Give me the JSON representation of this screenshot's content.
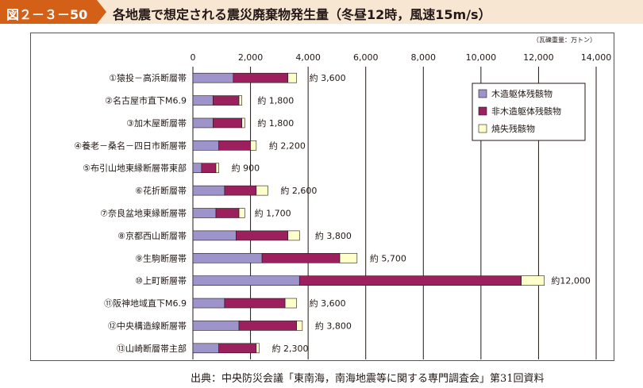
{
  "figure": {
    "label": "図２－３－50",
    "title": "各地震で想定される震災廃棄物発生量（冬昼12時，風速15m/s）",
    "source": "出典：中央防災会議「東南海，南海地震等に関する専門調査会」第31回資料"
  },
  "chart_data": {
    "type": "bar",
    "orientation": "horizontal",
    "stacked": true,
    "unit_note": "（瓦礫重量：万トン）",
    "xlim": [
      0,
      14000
    ],
    "x_ticks": [
      "0",
      "2,000",
      "4,000",
      "6,000",
      "8,000",
      "10,000",
      "12,000",
      "14,000"
    ],
    "grid": true,
    "legend_position": "top-right",
    "categories": [
      "①猿投－高浜断層帯",
      "②名古屋市直下M6.9",
      "③加木屋断層帯",
      "④養老－桑名－四日市断層帯",
      "⑤布引山地東縁断層帯東部",
      "⑥花折断層帯",
      "⑦奈良盆地東縁断層帯",
      "⑧京都西山断層帯",
      "⑨生駒断層帯",
      "⑩上町断層帯",
      "⑪阪神地域直下M6.9",
      "⑫中央構造線断層帯",
      "⑬山崎断層帯主部"
    ],
    "series": [
      {
        "name": "木造躯体残骸物",
        "color": "#9d94cc",
        "values": [
          1400,
          700,
          700,
          900,
          300,
          1100,
          800,
          1500,
          2400,
          3700,
          1100,
          1600,
          900
        ]
      },
      {
        "name": "非木造躯体残骸物",
        "color": "#9c1f5e",
        "values": [
          1900,
          900,
          1000,
          1100,
          500,
          1100,
          800,
          1800,
          2700,
          7700,
          2100,
          2000,
          1300
        ]
      },
      {
        "name": "焼失残骸物",
        "color": "#ffffcc",
        "values": [
          300,
          100,
          100,
          200,
          100,
          400,
          200,
          400,
          600,
          800,
          400,
          200,
          100
        ]
      }
    ],
    "data_labels": [
      "約 3,600",
      "約 1,800",
      "約 1,800",
      "約 2,200",
      "約 900",
      "約 2,600",
      "約 1,700",
      "約 3,800",
      "約 5,700",
      "約12,000",
      "約 3,600",
      "約 3,800",
      "約 2,300"
    ],
    "label_values": [
      3600,
      1800,
      1800,
      2200,
      900,
      2600,
      1700,
      3800,
      5700,
      12000,
      3600,
      3800,
      2300
    ]
  }
}
